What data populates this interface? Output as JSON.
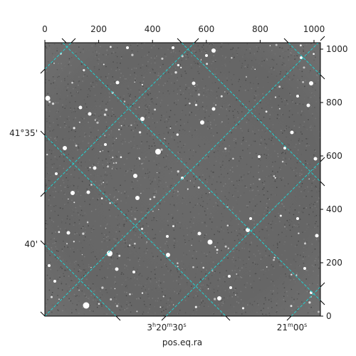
{
  "figure": {
    "xlabel": "pos.eq.ra",
    "top_ticks": [
      "0",
      "200",
      "400",
      "600",
      "800",
      "1000"
    ],
    "right_ticks": [
      "0",
      "200",
      "400",
      "600",
      "800",
      "1000"
    ],
    "dec_ticks": [
      "41°35'",
      "40'"
    ],
    "ra_ticks": [
      {
        "h": "3",
        "hs": "h",
        "m": "20",
        "ms": "m",
        "s": "30",
        "ss": "s"
      },
      {
        "h": "",
        "hs": "",
        "m": "21",
        "ms": "m",
        "s": "00",
        "ss": "s"
      }
    ],
    "grid_color": "#22d0d0",
    "image_color": "#6c6c6c"
  }
}
